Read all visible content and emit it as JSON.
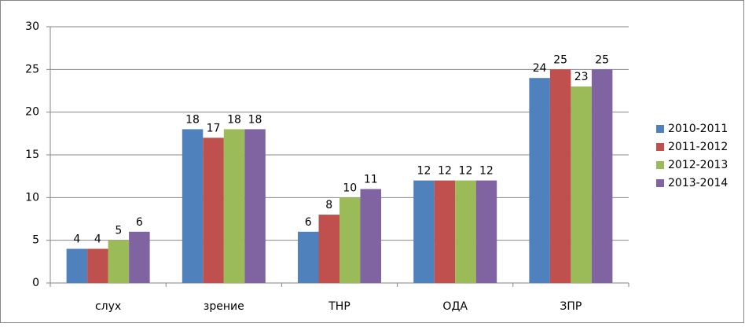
{
  "chart_data": {
    "type": "bar",
    "categories": [
      "слух",
      "зрение",
      "ТНР",
      "ОДА",
      "ЗПР"
    ],
    "series": [
      {
        "name": "2010-2011",
        "color": "#4f81bd",
        "values": [
          4,
          18,
          6,
          12,
          24
        ]
      },
      {
        "name": "2011-2012",
        "color": "#c0504d",
        "values": [
          4,
          17,
          8,
          12,
          25
        ]
      },
      {
        "name": "2012-2013",
        "color": "#9bbb59",
        "values": [
          5,
          18,
          10,
          12,
          23
        ]
      },
      {
        "name": "2013-2014",
        "color": "#8064a2",
        "values": [
          6,
          18,
          11,
          12,
          25
        ]
      }
    ],
    "ylim": [
      0,
      30
    ],
    "yticks": [
      0,
      5,
      10,
      15,
      20,
      25,
      30
    ],
    "grid": true,
    "legend": "right"
  }
}
